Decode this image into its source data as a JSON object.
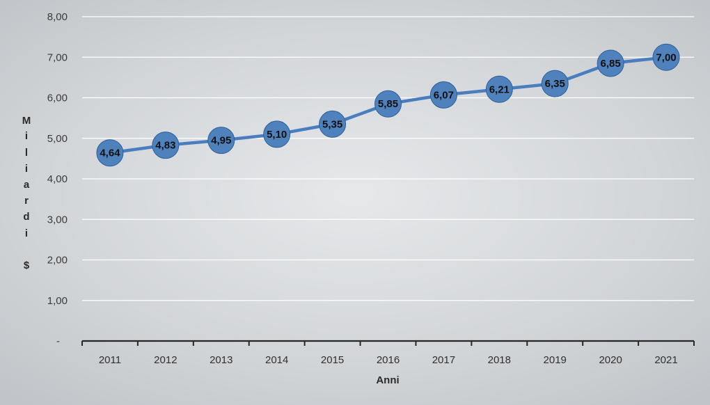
{
  "chart_data": {
    "type": "line",
    "categories": [
      "2011",
      "2012",
      "2013",
      "2014",
      "2015",
      "2016",
      "2017",
      "2018",
      "2019",
      "2020",
      "2021"
    ],
    "values": [
      4.64,
      4.83,
      4.95,
      5.1,
      5.35,
      5.85,
      6.07,
      6.21,
      6.35,
      6.85,
      7.0
    ],
    "data_labels": [
      "4,64",
      "4,83",
      "4,95",
      "5,10",
      "5,35",
      "5,85",
      "6,07",
      "6,21",
      "6,35",
      "6,85",
      "7,00"
    ],
    "y_ticks": [
      "-",
      "1,00",
      "2,00",
      "3,00",
      "4,00",
      "5,00",
      "6,00",
      "7,00",
      "8,00"
    ],
    "xlabel": "Anni",
    "ylabel_chars": [
      "M",
      "i",
      "l",
      "i",
      "a",
      "r",
      "d",
      "i",
      "$"
    ],
    "ylim": [
      0,
      8
    ],
    "grid": true,
    "legend": "none",
    "colors": {
      "line": "#4a7dbd",
      "marker": "#4f81bd",
      "marker_border": "#2d5f98",
      "grid": "#ffffff",
      "axis": "#262626"
    }
  }
}
